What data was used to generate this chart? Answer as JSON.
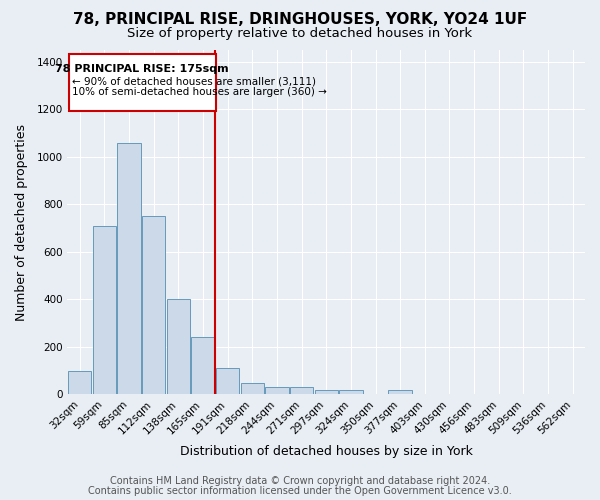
{
  "title1": "78, PRINCIPAL RISE, DRINGHOUSES, YORK, YO24 1UF",
  "title2": "Size of property relative to detached houses in York",
  "xlabel": "Distribution of detached houses by size in York",
  "ylabel": "Number of detached properties",
  "footer1": "Contains HM Land Registry data © Crown copyright and database right 2024.",
  "footer2": "Contains public sector information licensed under the Open Government Licence v3.0.",
  "annotation_line1": "78 PRINCIPAL RISE: 175sqm",
  "annotation_line2": "← 90% of detached houses are smaller (3,111)",
  "annotation_line3": "10% of semi-detached houses are larger (360) →",
  "bar_labels": [
    "32sqm",
    "59sqm",
    "85sqm",
    "112sqm",
    "138sqm",
    "165sqm",
    "191sqm",
    "218sqm",
    "244sqm",
    "271sqm",
    "297sqm",
    "324sqm",
    "350sqm",
    "377sqm",
    "403sqm",
    "430sqm",
    "456sqm",
    "483sqm",
    "509sqm",
    "536sqm",
    "562sqm"
  ],
  "bar_values": [
    100,
    710,
    1060,
    750,
    400,
    240,
    110,
    50,
    30,
    30,
    20,
    20,
    0,
    20,
    0,
    0,
    0,
    0,
    0,
    0,
    0
  ],
  "bar_color": "#ccd9e8",
  "bar_edge_color": "#6699bb",
  "red_line_index": 6,
  "ylim": [
    0,
    1450
  ],
  "yticks": [
    0,
    200,
    400,
    600,
    800,
    1000,
    1200,
    1400
  ],
  "bg_color": "#e8eef4",
  "plot_bg_color": "#e8eef4",
  "annotation_box_color": "#ffffff",
  "annotation_border_color": "#cc0000",
  "red_line_color": "#cc0000",
  "title_fontsize": 11,
  "subtitle_fontsize": 9.5,
  "axis_label_fontsize": 9,
  "tick_fontsize": 7.5,
  "footer_fontsize": 7
}
